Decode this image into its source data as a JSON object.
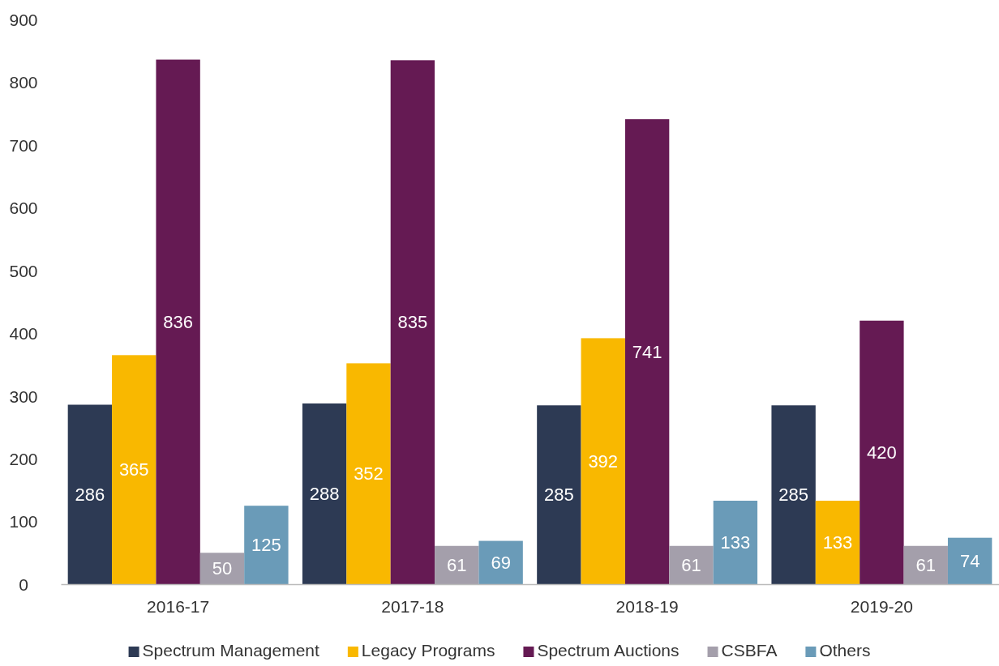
{
  "chart_data": {
    "type": "bar",
    "categories": [
      "2016-17",
      "2017-18",
      "2018-19",
      "2019-20"
    ],
    "series": [
      {
        "name": "Spectrum Management",
        "color": "#2d3a54",
        "values": [
          286,
          288,
          285,
          285
        ]
      },
      {
        "name": "Legacy Programs",
        "color": "#f9b800",
        "values": [
          365,
          352,
          392,
          133
        ]
      },
      {
        "name": "Spectrum Auctions",
        "color": "#651a53",
        "values": [
          836,
          835,
          741,
          420
        ]
      },
      {
        "name": "CSBFA",
        "color": "#a49fab",
        "values": [
          50,
          61,
          61,
          61
        ]
      },
      {
        "name": "Others",
        "color": "#6a9bb8",
        "values": [
          125,
          69,
          133,
          74
        ]
      }
    ],
    "ylim": [
      0,
      900
    ],
    "yticks": [
      0,
      100,
      200,
      300,
      400,
      500,
      600,
      700,
      800,
      900
    ],
    "grid": false,
    "legend": "bottom",
    "data_labels": true
  }
}
